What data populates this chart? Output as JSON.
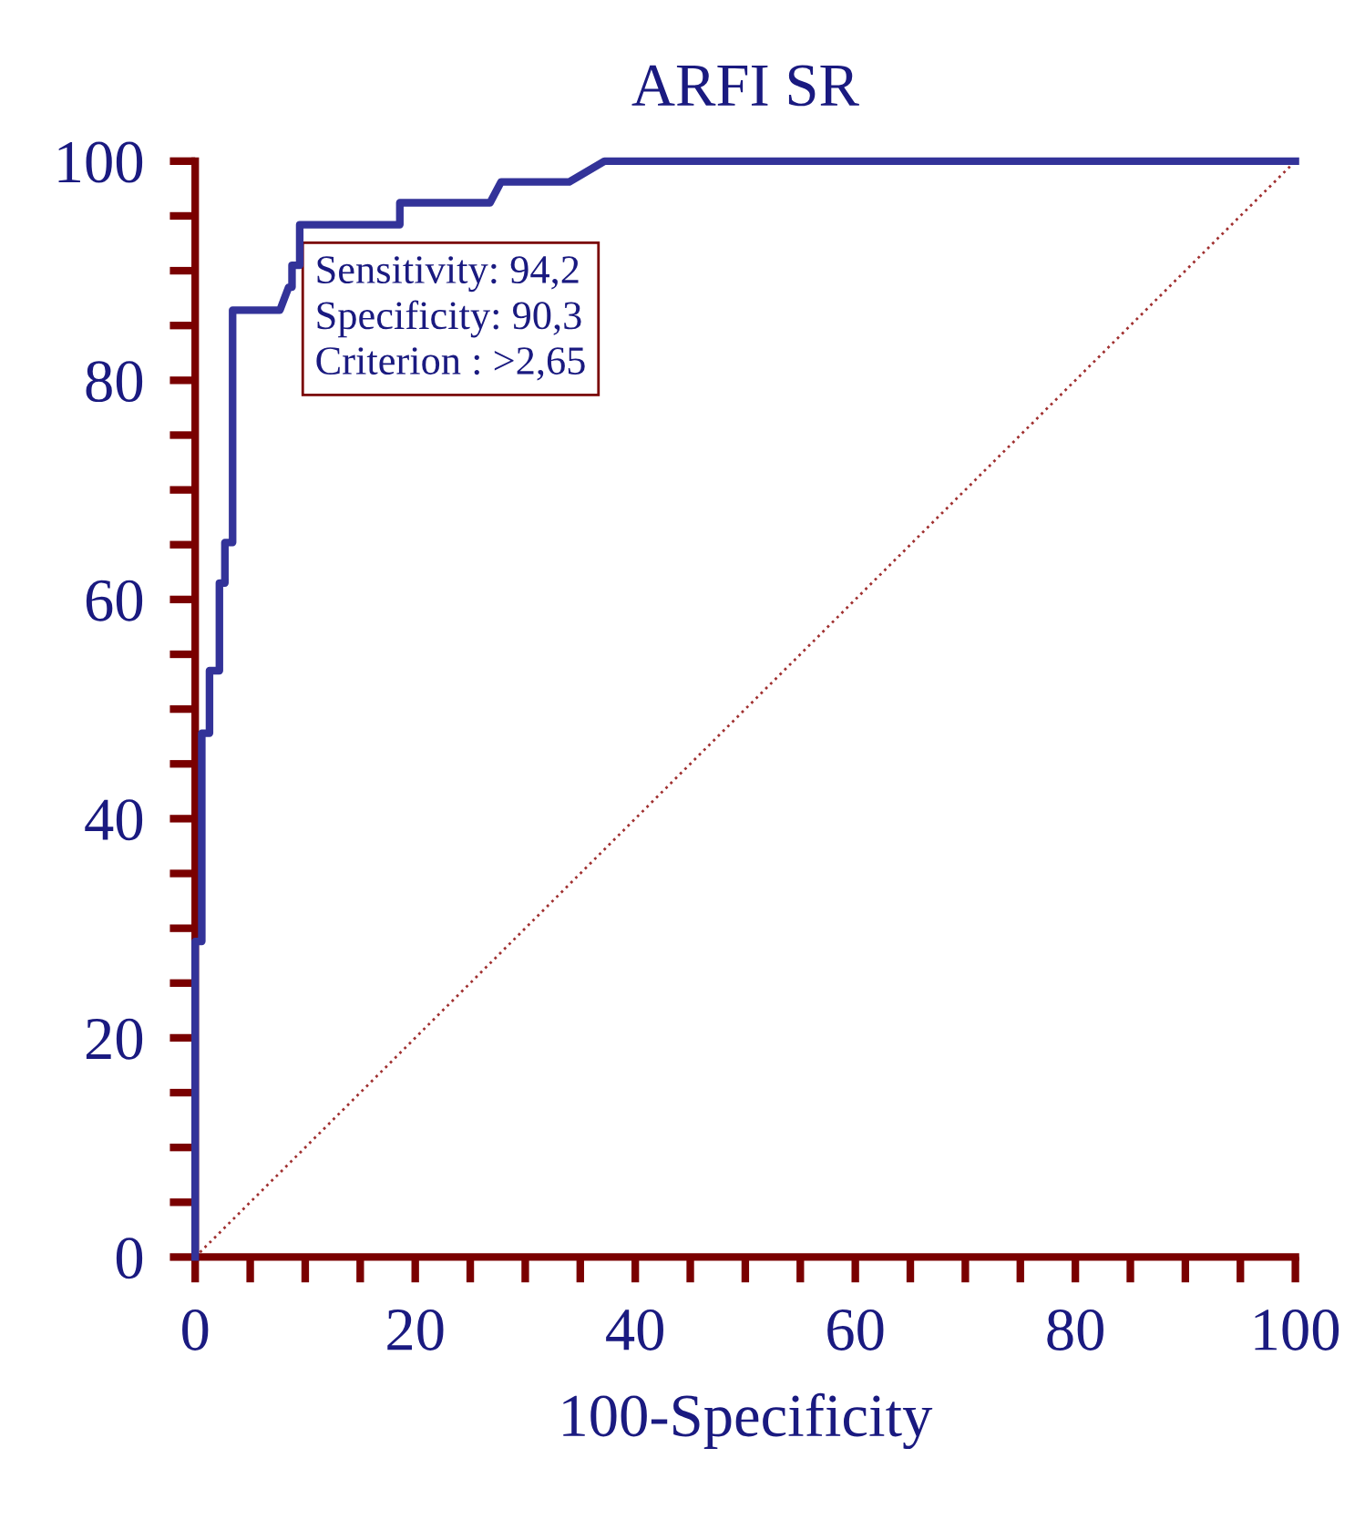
{
  "chart_data": {
    "type": "line",
    "title": "ARFI SR",
    "xlabel": "100-Specificity",
    "series": [
      {
        "type": "step",
        "color": "#333399",
        "x": [
          0,
          0,
          0.6,
          0.6,
          1.3,
          1.3,
          2.2,
          2.2,
          2.7,
          2.7,
          3.4,
          3.4,
          7.7,
          8.5,
          8.8,
          8.8,
          9.5,
          9.5,
          18.6,
          18.6,
          26.8,
          27.8,
          34,
          37.2,
          100
        ],
        "values": [
          0,
          28.8,
          28.8,
          47.8,
          47.8,
          53.5,
          53.5,
          61.5,
          61.5,
          65.2,
          65.2,
          86.4,
          86.4,
          88.5,
          88.5,
          90.5,
          90.5,
          94.2,
          94.2,
          96.2,
          96.2,
          98.1,
          98.1,
          100,
          100
        ]
      },
      {
        "type": "line",
        "color": "#a03030",
        "line_style": "dotted",
        "x": [
          0,
          100
        ],
        "values": [
          0,
          100
        ]
      }
    ],
    "annotations": [
      {
        "text": "Sensitivity: 94,2\nSpecificity: 90,3\nCriterion : >2,65",
        "x": 9.5,
        "y": 94.2
      }
    ],
    "xlim": [
      0,
      100
    ],
    "ylim": [
      0,
      100
    ],
    "xticks": [
      0,
      {
        "value": 5,
        "label": null
      },
      {
        "value": 10,
        "label": null
      },
      {
        "value": 15,
        "label": null
      },
      20,
      {
        "value": 25,
        "label": null
      },
      {
        "value": 30,
        "label": null
      },
      {
        "value": 35,
        "label": null
      },
      40,
      {
        "value": 45,
        "label": null
      },
      {
        "value": 50,
        "label": null
      },
      {
        "value": 55,
        "label": null
      },
      60,
      {
        "value": 65,
        "label": null
      },
      {
        "value": 70,
        "label": null
      },
      {
        "value": 75,
        "label": null
      },
      80,
      {
        "value": 85,
        "label": null
      },
      {
        "value": 90,
        "label": null
      },
      {
        "value": 95,
        "label": null
      },
      100
    ],
    "yticks": [
      0,
      {
        "value": 5,
        "label": null
      },
      {
        "value": 10,
        "label": null
      },
      {
        "value": 15,
        "label": null
      },
      20,
      {
        "value": 25,
        "label": null
      },
      {
        "value": 30,
        "label": null
      },
      {
        "value": 35,
        "label": null
      },
      40,
      {
        "value": 45,
        "label": null
      },
      {
        "value": 50,
        "label": null
      },
      {
        "value": 55,
        "label": null
      },
      60,
      {
        "value": 65,
        "label": null
      },
      {
        "value": 70,
        "label": null
      },
      {
        "value": 75,
        "label": null
      },
      80,
      {
        "value": 85,
        "label": null
      },
      {
        "value": 90,
        "label": null
      },
      {
        "value": 95,
        "label": null
      },
      100
    ],
    "grid": false,
    "legend": false
  }
}
